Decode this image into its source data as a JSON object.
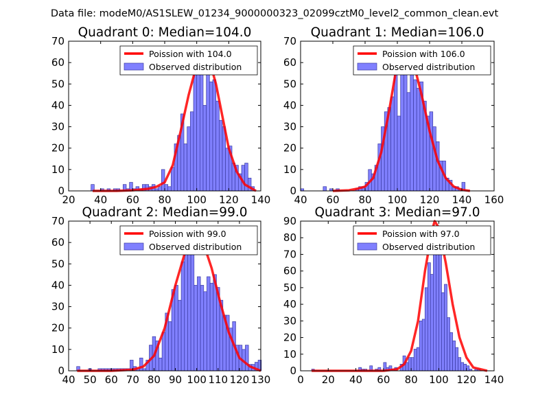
{
  "figure": {
    "suptitle": "Data file: modeM0/AS1SLEW_01234_9000000323_02099cztM0_level2_common_clean.evt"
  },
  "colors": {
    "bar_fill": "#8080ff",
    "bar_edge": "#3a3aa0",
    "poisson_line": "#ff0000"
  },
  "chart_data": [
    {
      "type": "bar",
      "title": "Quadrant 0: Median=104.0",
      "median": 104.0,
      "xlim": [
        20,
        140
      ],
      "ylim": [
        0,
        70
      ],
      "xticks": [
        20,
        40,
        60,
        80,
        100,
        120,
        140
      ],
      "yticks": [
        0,
        10,
        20,
        30,
        40,
        50,
        60,
        70
      ],
      "legend": {
        "location": "top-right",
        "poisson_label": "Poission with 104.0",
        "observed_label": "Observed distribution"
      },
      "bin_width": 2,
      "bins": [
        [
          35,
          3
        ],
        [
          41,
          1
        ],
        [
          45,
          1
        ],
        [
          49,
          1
        ],
        [
          51,
          1
        ],
        [
          55,
          3
        ],
        [
          57,
          1
        ],
        [
          59,
          4
        ],
        [
          61,
          1
        ],
        [
          63,
          2
        ],
        [
          65,
          1
        ],
        [
          67,
          3
        ],
        [
          69,
          3
        ],
        [
          71,
          2
        ],
        [
          73,
          3
        ],
        [
          75,
          1
        ],
        [
          77,
          2
        ],
        [
          79,
          10
        ],
        [
          81,
          3
        ],
        [
          83,
          2
        ],
        [
          85,
          11
        ],
        [
          87,
          22
        ],
        [
          89,
          26
        ],
        [
          91,
          36
        ],
        [
          93,
          22
        ],
        [
          95,
          30
        ],
        [
          97,
          37
        ],
        [
          99,
          58
        ],
        [
          101,
          58
        ],
        [
          103,
          57
        ],
        [
          105,
          40
        ],
        [
          107,
          55
        ],
        [
          109,
          51
        ],
        [
          111,
          52
        ],
        [
          113,
          42
        ],
        [
          115,
          33
        ],
        [
          117,
          30
        ],
        [
          119,
          20
        ],
        [
          121,
          21
        ],
        [
          123,
          13
        ],
        [
          125,
          12
        ],
        [
          127,
          8
        ],
        [
          129,
          12
        ],
        [
          131,
          13
        ],
        [
          133,
          6
        ],
        [
          135,
          2
        ]
      ],
      "poisson_curve": [
        [
          35,
          0
        ],
        [
          50,
          0
        ],
        [
          60,
          0.3
        ],
        [
          70,
          1
        ],
        [
          75,
          2
        ],
        [
          80,
          4
        ],
        [
          85,
          12
        ],
        [
          90,
          28
        ],
        [
          95,
          45
        ],
        [
          100,
          59
        ],
        [
          104,
          63
        ],
        [
          108,
          61
        ],
        [
          112,
          50
        ],
        [
          116,
          35
        ],
        [
          120,
          20
        ],
        [
          125,
          9
        ],
        [
          130,
          3
        ],
        [
          137,
          0
        ]
      ]
    },
    {
      "type": "bar",
      "title": "Quadrant 1: Median=106.0",
      "median": 106.0,
      "xlim": [
        40,
        160
      ],
      "ylim": [
        0,
        70
      ],
      "xticks": [
        40,
        60,
        80,
        100,
        120,
        140,
        160
      ],
      "yticks": [
        0,
        10,
        20,
        30,
        40,
        50,
        60,
        70
      ],
      "legend": {
        "location": "top-right",
        "poisson_label": "Poission with 106.0",
        "observed_label": "Observed distribution"
      },
      "bin_width": 2,
      "bins": [
        [
          41,
          1
        ],
        [
          55,
          2
        ],
        [
          59,
          1
        ],
        [
          63,
          1
        ],
        [
          75,
          1
        ],
        [
          77,
          2
        ],
        [
          79,
          2
        ],
        [
          81,
          4
        ],
        [
          83,
          10
        ],
        [
          85,
          8
        ],
        [
          87,
          12
        ],
        [
          89,
          22
        ],
        [
          91,
          30
        ],
        [
          93,
          37
        ],
        [
          95,
          39
        ],
        [
          97,
          44
        ],
        [
          99,
          58
        ],
        [
          101,
          35
        ],
        [
          103,
          56
        ],
        [
          105,
          66
        ],
        [
          107,
          46
        ],
        [
          109,
          62
        ],
        [
          111,
          52
        ],
        [
          113,
          48
        ],
        [
          115,
          51
        ],
        [
          117,
          42
        ],
        [
          119,
          35
        ],
        [
          121,
          37
        ],
        [
          123,
          30
        ],
        [
          125,
          23
        ],
        [
          127,
          14
        ],
        [
          129,
          14
        ],
        [
          131,
          6
        ],
        [
          133,
          5
        ],
        [
          135,
          2
        ],
        [
          137,
          2
        ],
        [
          139,
          1
        ],
        [
          141,
          4
        ]
      ],
      "poisson_curve": [
        [
          60,
          0
        ],
        [
          70,
          0.3
        ],
        [
          75,
          1
        ],
        [
          80,
          2
        ],
        [
          85,
          6
        ],
        [
          90,
          18
        ],
        [
          95,
          38
        ],
        [
          100,
          60
        ],
        [
          105,
          67
        ],
        [
          110,
          60
        ],
        [
          115,
          45
        ],
        [
          120,
          28
        ],
        [
          125,
          14
        ],
        [
          130,
          6
        ],
        [
          135,
          2
        ],
        [
          140,
          0.5
        ],
        [
          145,
          0
        ]
      ]
    },
    {
      "type": "bar",
      "title": "Quadrant 2: Median=99.0",
      "median": 99.0,
      "xlim": [
        40,
        130
      ],
      "ylim": [
        0,
        70
      ],
      "xticks": [
        40,
        50,
        60,
        70,
        80,
        90,
        100,
        110,
        120,
        130
      ],
      "yticks": [
        0,
        10,
        20,
        30,
        40,
        50,
        60,
        70
      ],
      "legend": {
        "location": "top-right",
        "poisson_label": "Poission with 99.0",
        "observed_label": "Observed distribution"
      },
      "bin_width": 1.5,
      "bins": [
        [
          44.5,
          2
        ],
        [
          50,
          1
        ],
        [
          54.5,
          1
        ],
        [
          56,
          1
        ],
        [
          57.5,
          1
        ],
        [
          59,
          1
        ],
        [
          60.5,
          1
        ],
        [
          62,
          1
        ],
        [
          63.5,
          1
        ],
        [
          65,
          1
        ],
        [
          66.5,
          1
        ],
        [
          68,
          1
        ],
        [
          69.5,
          5
        ],
        [
          71,
          2
        ],
        [
          72.5,
          1
        ],
        [
          74,
          6
        ],
        [
          75.5,
          1
        ],
        [
          77,
          5
        ],
        [
          78.5,
          12
        ],
        [
          80,
          16
        ],
        [
          81.5,
          14
        ],
        [
          83,
          6
        ],
        [
          84.5,
          18
        ],
        [
          86,
          27
        ],
        [
          87.5,
          23
        ],
        [
          89,
          38
        ],
        [
          90.5,
          40
        ],
        [
          92,
          33
        ],
        [
          93.5,
          51
        ],
        [
          95,
          62
        ],
        [
          96.5,
          60
        ],
        [
          98,
          59
        ],
        [
          99.5,
          40
        ],
        [
          101,
          44
        ],
        [
          102.5,
          40
        ],
        [
          104,
          37
        ],
        [
          105.5,
          44
        ],
        [
          107,
          41
        ],
        [
          108.5,
          45
        ],
        [
          110,
          39
        ],
        [
          111.5,
          33
        ],
        [
          113,
          26
        ],
        [
          114.5,
          26
        ],
        [
          116,
          20
        ],
        [
          117.5,
          23
        ],
        [
          119,
          12
        ],
        [
          120.5,
          12
        ],
        [
          122,
          10
        ],
        [
          123.5,
          12
        ],
        [
          125,
          3
        ],
        [
          126.5,
          3
        ],
        [
          128,
          4
        ],
        [
          129.5,
          5
        ]
      ],
      "poisson_curve": [
        [
          44,
          0
        ],
        [
          60,
          0
        ],
        [
          70,
          0.5
        ],
        [
          75,
          2
        ],
        [
          80,
          7
        ],
        [
          85,
          20
        ],
        [
          90,
          40
        ],
        [
          95,
          57
        ],
        [
          99,
          64
        ],
        [
          103,
          60
        ],
        [
          107,
          48
        ],
        [
          111,
          32
        ],
        [
          115,
          18
        ],
        [
          120,
          6
        ],
        [
          125,
          2
        ],
        [
          130,
          0
        ]
      ]
    },
    {
      "type": "bar",
      "title": "Quadrant 3: Median=97.0",
      "median": 97.0,
      "xlim": [
        0,
        140
      ],
      "ylim": [
        0,
        90
      ],
      "xticks": [
        0,
        20,
        40,
        60,
        80,
        100,
        120,
        140
      ],
      "yticks": [
        0,
        10,
        20,
        30,
        40,
        50,
        60,
        70,
        80,
        90
      ],
      "legend": {
        "location": "top-right",
        "poisson_label": "Poission with 97.0",
        "observed_label": "Observed distribution"
      },
      "bin_width": 2,
      "bins": [
        [
          9,
          1
        ],
        [
          43,
          2
        ],
        [
          45,
          1
        ],
        [
          47,
          1
        ],
        [
          51,
          3
        ],
        [
          55,
          1
        ],
        [
          57,
          2
        ],
        [
          61,
          5
        ],
        [
          63,
          2
        ],
        [
          65,
          3
        ],
        [
          67,
          1
        ],
        [
          69,
          2
        ],
        [
          73,
          4
        ],
        [
          75,
          9
        ],
        [
          77,
          5
        ],
        [
          79,
          8
        ],
        [
          81,
          8
        ],
        [
          83,
          13
        ],
        [
          85,
          14
        ],
        [
          87,
          30
        ],
        [
          89,
          31
        ],
        [
          91,
          50
        ],
        [
          93,
          65
        ],
        [
          95,
          58
        ],
        [
          97,
          80
        ],
        [
          99,
          70
        ],
        [
          101,
          79
        ],
        [
          103,
          47
        ],
        [
          105,
          52
        ],
        [
          107,
          32
        ],
        [
          109,
          23
        ],
        [
          111,
          18
        ],
        [
          113,
          14
        ],
        [
          115,
          8
        ],
        [
          117,
          5
        ],
        [
          119,
          4
        ],
        [
          121,
          3
        ],
        [
          123,
          1
        ],
        [
          127,
          1
        ],
        [
          129,
          1
        ]
      ],
      "poisson_curve": [
        [
          8,
          0
        ],
        [
          60,
          0
        ],
        [
          70,
          1
        ],
        [
          75,
          4
        ],
        [
          80,
          12
        ],
        [
          85,
          30
        ],
        [
          90,
          60
        ],
        [
          95,
          84
        ],
        [
          97,
          90
        ],
        [
          100,
          86
        ],
        [
          105,
          65
        ],
        [
          110,
          40
        ],
        [
          115,
          20
        ],
        [
          120,
          8
        ],
        [
          125,
          2
        ],
        [
          135,
          0
        ]
      ]
    }
  ]
}
